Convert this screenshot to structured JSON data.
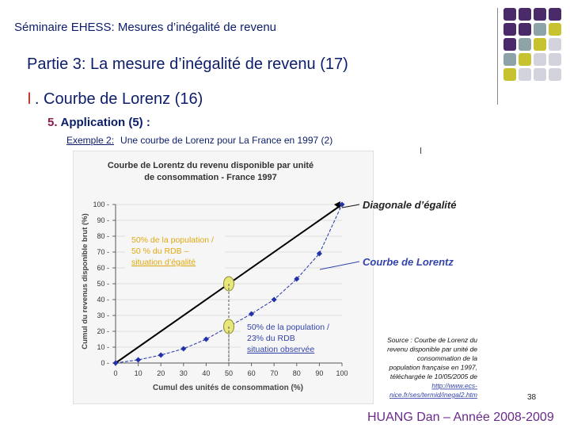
{
  "header": {
    "seminar": "Séminaire EHESS:  Mesures d’inégalité de revenu"
  },
  "section": {
    "title": "Partie 3:  La mesure d’inégalité de revenu (17)"
  },
  "subsection": {
    "roman": "Ⅰ",
    "title": ". Courbe de Lorenz (16)"
  },
  "application": {
    "number": "5.",
    "title": "Application (5) :"
  },
  "example": {
    "label": "Exemple 2:",
    "title": "Une courbe de Lorenz pour La France en 1997 (2)"
  },
  "footer": {
    "author": "HUANG Dan – Année 2008-2009",
    "page": "38"
  },
  "decoration": {
    "dot_colors": [
      "#4b2a6a",
      "#8ea3a8",
      "#c7c230",
      "#d3d3de"
    ],
    "grid_rows": [
      [
        "#4b2a6a",
        "#4b2a6a",
        "#4b2a6a",
        "#4b2a6a"
      ],
      [
        "#4b2a6a",
        "#4b2a6a",
        "#8ea3a8",
        "#c7c230"
      ],
      [
        "#4b2a6a",
        "#8ea3a8",
        "#c7c230",
        "#d3d3de"
      ],
      [
        "#8ea3a8",
        "#c7c230",
        "#d3d3de",
        "#d3d3de"
      ],
      [
        "#c7c230",
        "#d3d3de",
        "#d3d3de",
        "#d3d3de"
      ]
    ]
  },
  "chart_data": {
    "type": "line",
    "title": "Courbe de Lorentz du revenu disponible par unité de consommation - France 1997",
    "title_lines": [
      "Courbe de Lorentz du revenu disponible par unité",
      "de consommation - France 1997"
    ],
    "xlabel": "Cumul des unités de consommation (%)",
    "ylabel": "Cumul du revenus disponible brut (%)",
    "xlim": [
      0,
      100
    ],
    "ylim": [
      0,
      100
    ],
    "x_ticks": [
      0,
      10,
      20,
      30,
      40,
      50,
      60,
      70,
      80,
      90,
      100
    ],
    "y_ticks": [
      0,
      10,
      20,
      30,
      40,
      50,
      60,
      70,
      80,
      90,
      100
    ],
    "series": [
      {
        "name": "Diagonale d’égalité",
        "x": [
          0,
          100
        ],
        "y": [
          0,
          100
        ],
        "color": "#000000"
      },
      {
        "name": "Courbe de Lorentz",
        "x": [
          0,
          10,
          20,
          30,
          40,
          50,
          60,
          70,
          80,
          90,
          100
        ],
        "y": [
          0,
          2,
          5,
          9,
          15,
          23,
          31,
          40,
          53,
          69,
          100
        ],
        "color": "#2233aa"
      }
    ],
    "highlights": [
      {
        "x": 50,
        "y": 50
      },
      {
        "x": 50,
        "y": 23
      }
    ],
    "annotations": {
      "equality_note": [
        "50% de la population /",
        "50 % du RDB –",
        "situation d’égalité"
      ],
      "observed_note": [
        "50% de la population /",
        "23% du RDB",
        "situation observée"
      ],
      "diag_label": "Diagonale d’égalité",
      "lorenz_label": "Courbe de Lorentz",
      "source": [
        "Source : Courbe de Lorenz du",
        "revenu disponible par unité de",
        "consommation de la",
        "population française en 1997,",
        "téléchargée le 10/05/2005 de",
        "http://www.ecs-",
        "nice.fr/ses/termid/inegal2.htm"
      ]
    }
  }
}
